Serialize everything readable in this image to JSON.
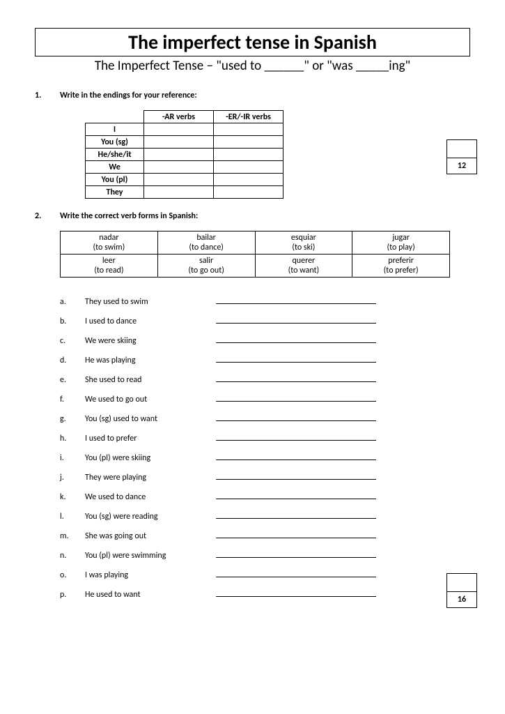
{
  "title": "The imperfect tense in Spanish",
  "subtitle": "The Imperfect Tense – \"used to ______\" or \"was _____ing\"",
  "section1": {
    "num": "1.",
    "heading": "Write in the endings for your reference:",
    "col_ar": "-AR verbs",
    "col_er": "-ER/-IR verbs",
    "pronouns": [
      "I",
      "You (sg)",
      "He/she/it",
      "We",
      "You (pl)",
      "They"
    ],
    "score": "12"
  },
  "section2": {
    "num": "2.",
    "heading": "Write the correct verb forms in Spanish:",
    "verbs": [
      [
        "nadar",
        "bailar",
        "esquiar",
        "jugar"
      ],
      [
        "(to swim)",
        "(to dance)",
        "(to ski)",
        "(to play)"
      ],
      [
        "leer",
        "salir",
        "querer",
        "preferir"
      ],
      [
        "(to read)",
        "(to go out)",
        "(to want)",
        "(to prefer)"
      ]
    ],
    "prompts": [
      {
        "l": "a.",
        "t": "They used to swim"
      },
      {
        "l": "b.",
        "t": "I used to dance"
      },
      {
        "l": "c.",
        "t": "We were skiing"
      },
      {
        "l": "d.",
        "t": "He was playing"
      },
      {
        "l": "e.",
        "t": "She used to read"
      },
      {
        "l": "f.",
        "t": "We used to go out"
      },
      {
        "l": "g.",
        "t": "You (sg) used to want"
      },
      {
        "l": "h.",
        "t": "I used to prefer"
      },
      {
        "l": "i.",
        "t": "You (pl) were skiing"
      },
      {
        "l": "j.",
        "t": "They were playing"
      },
      {
        "l": "k.",
        "t": "We used to dance"
      },
      {
        "l": "l.",
        "t": "You (sg) were reading"
      },
      {
        "l": "m.",
        "t": "She was going out"
      },
      {
        "l": "n.",
        "t": "You (pl) were swimming"
      },
      {
        "l": "o.",
        "t": "I was playing"
      },
      {
        "l": "p.",
        "t": "He used to want"
      }
    ],
    "score": "16"
  }
}
